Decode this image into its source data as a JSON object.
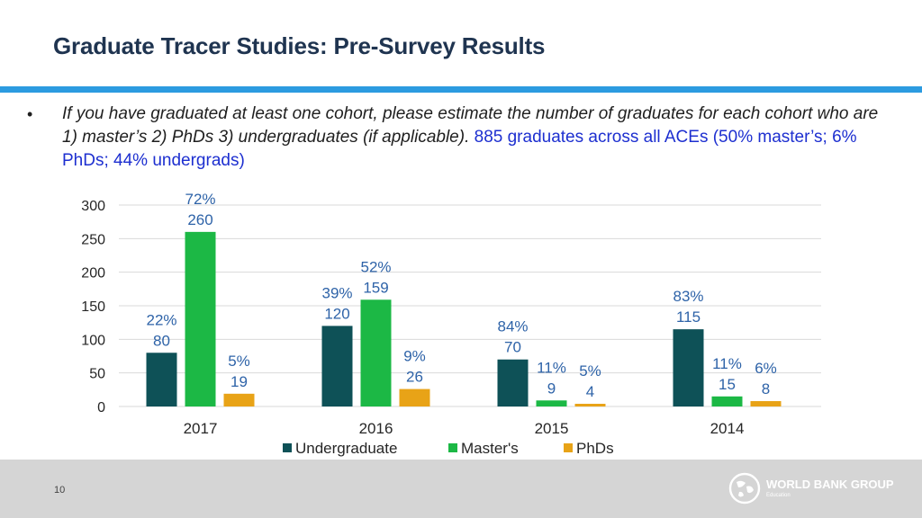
{
  "slide": {
    "title": "Graduate Tracer Studies: Pre-Survey Results",
    "bullet": "•",
    "question": "If you have graduated at least one cohort, please estimate the number of graduates for each cohort who are 1) master’s 2) PhDs 3) undergraduates (if applicable).",
    "summary": "885 graduates across all ACEs (50% master’s; 6% PhDs; 44% undergrads)",
    "page_number": "10"
  },
  "footer": {
    "logo_name": "WORLD BANK GROUP",
    "logo_sub": "Education",
    "logo_icon": "globe-icon"
  },
  "chart_data": {
    "type": "bar",
    "categories": [
      "2017",
      "2016",
      "2015",
      "2014"
    ],
    "series": [
      {
        "name": "Undergraduate",
        "color": "#0e5157",
        "values": [
          80,
          120,
          70,
          115
        ],
        "pct_labels": [
          "22%",
          "39%",
          "84%",
          "83%"
        ]
      },
      {
        "name": "Master's",
        "color": "#1cb845",
        "values": [
          260,
          159,
          9,
          15
        ],
        "pct_labels": [
          "72%",
          "52%",
          "11%",
          "11%"
        ]
      },
      {
        "name": "PhDs",
        "color": "#e8a317",
        "values": [
          19,
          26,
          4,
          8
        ],
        "pct_labels": [
          "5%",
          "9%",
          "5%",
          "6%"
        ]
      }
    ],
    "yticks": [
      0,
      50,
      100,
      150,
      200,
      250,
      300
    ],
    "ylim": [
      0,
      300
    ],
    "grid": true,
    "legend_position": "bottom",
    "label_color": "#2e63a8"
  }
}
